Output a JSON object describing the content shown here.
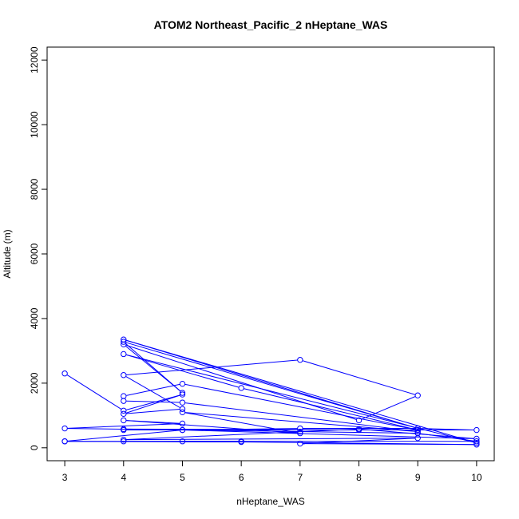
{
  "chart_data": {
    "type": "line",
    "title": "ATOM2 Northeast_Pacific_2 nHeptane_WAS",
    "xlabel": "nHeptane_WAS",
    "ylabel": "Altitude (m)",
    "xlim": [
      2.7,
      10.3
    ],
    "ylim": [
      -400,
      12400
    ],
    "xticks": [
      3,
      4,
      5,
      6,
      7,
      8,
      9,
      10
    ],
    "yticks": [
      0,
      2000,
      4000,
      6000,
      8000,
      10000,
      12000
    ],
    "grid": false,
    "colors": {
      "series": "#0000ff",
      "axis": "#000000"
    },
    "points": [
      [
        3,
        2300
      ],
      [
        4,
        1150
      ],
      [
        5,
        1650
      ],
      [
        4,
        1050
      ],
      [
        5,
        1200
      ],
      [
        4,
        2250
      ],
      [
        7,
        2720
      ],
      [
        9,
        1620
      ],
      [
        8,
        850
      ],
      [
        4,
        3200
      ],
      [
        5,
        1700
      ],
      [
        4,
        3280
      ],
      [
        9,
        600
      ],
      [
        4,
        3350
      ],
      [
        10,
        150
      ],
      [
        4,
        2900
      ],
      [
        6,
        1850
      ],
      [
        9,
        550
      ],
      [
        5,
        1980
      ],
      [
        4,
        1600
      ],
      [
        4,
        1450
      ],
      [
        5,
        1400
      ],
      [
        9,
        500
      ],
      [
        5,
        1100
      ],
      [
        7,
        450
      ],
      [
        4,
        850
      ],
      [
        5,
        750
      ],
      [
        3,
        600
      ],
      [
        5,
        550
      ],
      [
        7,
        600
      ],
      [
        9,
        600
      ],
      [
        10,
        550
      ],
      [
        4,
        550
      ],
      [
        8,
        550
      ],
      [
        9,
        550
      ],
      [
        4,
        580
      ],
      [
        7,
        500
      ],
      [
        9,
        450
      ],
      [
        10,
        200
      ],
      [
        4,
        200
      ],
      [
        6,
        180
      ],
      [
        3,
        200
      ],
      [
        6,
        200
      ],
      [
        5,
        200
      ],
      [
        10,
        100
      ],
      [
        7,
        130
      ],
      [
        9,
        300
      ],
      [
        4,
        250
      ],
      [
        8,
        580
      ],
      [
        10,
        280
      ],
      [
        5,
        550
      ],
      [
        3,
        200
      ]
    ]
  }
}
